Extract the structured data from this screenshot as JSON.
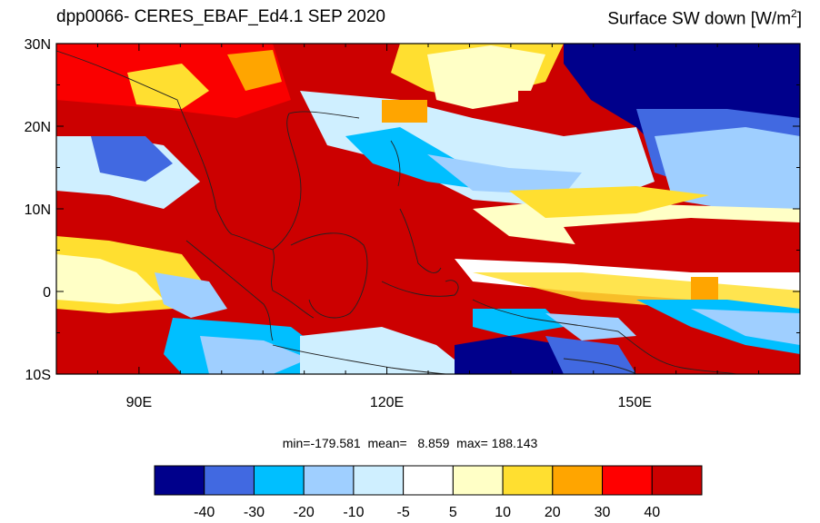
{
  "title": {
    "left": "dpp0066- CERES_EBAF_Ed4.1  SEP 2020",
    "right_prefix": "Surface SW down [W/m",
    "right_exp": "2",
    "right_suffix": "]"
  },
  "stats": {
    "text": "min=-179.581  mean=   8.859  max= 188.143"
  },
  "map": {
    "lon_range": [
      80,
      170
    ],
    "lat_range": [
      -10,
      30
    ],
    "lat_ticks": [
      {
        "value": 30,
        "label": "30N"
      },
      {
        "value": 20,
        "label": "20N"
      },
      {
        "value": 10,
        "label": "10N"
      },
      {
        "value": 0,
        "label": "0"
      },
      {
        "value": -10,
        "label": "10S"
      }
    ],
    "lon_ticks": [
      {
        "value": 90,
        "label": "90E"
      },
      {
        "value": 120,
        "label": "120E"
      },
      {
        "value": 150,
        "label": "150E"
      }
    ]
  },
  "colorbar": {
    "colors": [
      "#00008b",
      "#4169e1",
      "#00bfff",
      "#9fcfff",
      "#cfefff",
      "#ffffff",
      "#ffffc6",
      "#ffdf30",
      "#ffa500",
      "#ff0000",
      "#cc0000"
    ],
    "labels": [
      "-40",
      "-30",
      "-20",
      "-10",
      "-5",
      "5",
      "10",
      "20",
      "30",
      "40"
    ]
  }
}
